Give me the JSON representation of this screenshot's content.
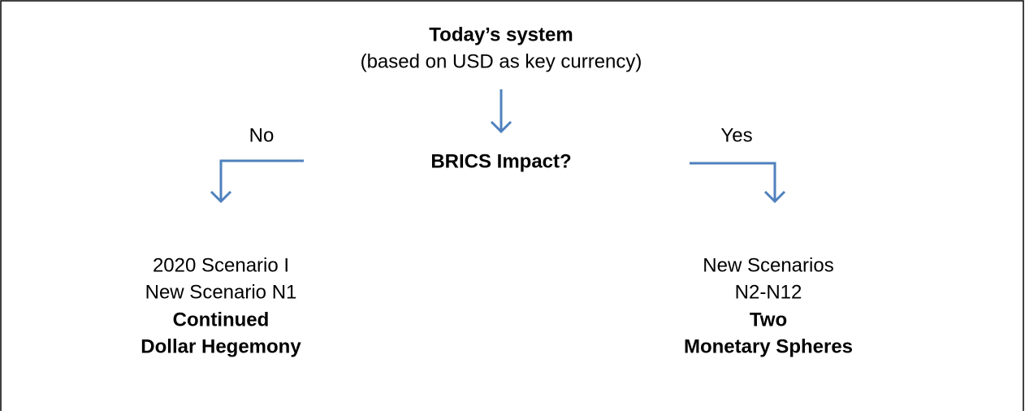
{
  "header": {
    "title": "Today’s system",
    "subtitle": "(based on USD as key currency)"
  },
  "question": "BRICS Impact?",
  "branches": [
    {
      "label": "No",
      "lines": [
        "2020 Scenario I",
        "New Scenario N1"
      ],
      "bold_lines": [
        "Continued",
        "Dollar Hegemony"
      ]
    },
    {
      "label": "Yes",
      "lines": [
        "New Scenarios",
        "N2-N12"
      ],
      "bold_lines": [
        "Two",
        "Monetary Spheres"
      ]
    }
  ]
}
